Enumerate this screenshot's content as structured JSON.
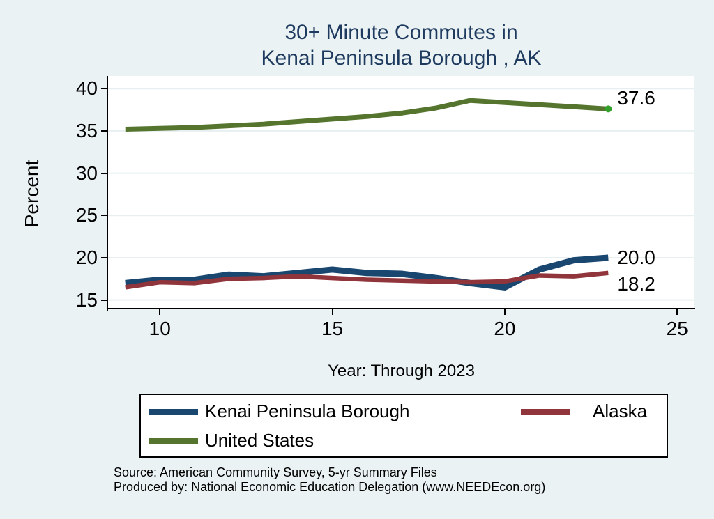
{
  "title": {
    "line1": "30+ Minute Commutes in",
    "line2": "Kenai Peninsula Borough , AK"
  },
  "y_axis": {
    "title": "Percent"
  },
  "x_axis": {
    "title": "Year: Through 2023"
  },
  "legend": {
    "items": [
      {
        "label": "Kenai Peninsula Borough",
        "color": "#1a476f"
      },
      {
        "label": "Alaska",
        "color": "#90353b"
      },
      {
        "label": "United States",
        "color": "#55752f"
      }
    ]
  },
  "footer": {
    "line1": "Source: American Community Survey, 5-yr Summary Files",
    "line2": "Produced by: National Economic Education Delegation (www.NEEDEcon.org)"
  },
  "colors": {
    "background": "#eaf2f3",
    "plot_background": "#ffffff",
    "gridline": "#e7eff1",
    "axis": "#000000",
    "title_text": "#1e3a5f",
    "end_marker": "#33a02c"
  },
  "chart_data": {
    "type": "line",
    "title": "30+ Minute Commutes in Kenai Peninsula Borough , AK",
    "xlabel": "Year: Through 2023",
    "ylabel": "Percent",
    "grid": "horizontal",
    "legend_position": "bottom",
    "x": [
      9,
      10,
      11,
      12,
      13,
      14,
      15,
      16,
      17,
      18,
      19,
      20,
      21,
      22,
      23
    ],
    "x_ticks": [
      10,
      15,
      20,
      25
    ],
    "y_ticks": [
      15,
      20,
      25,
      30,
      35,
      40
    ],
    "xlim": [
      8.5,
      25.5
    ],
    "ylim": [
      13.9,
      41.5
    ],
    "series": [
      {
        "name": "Kenai Peninsula Borough",
        "color": "#1a476f",
        "width": 9,
        "end_label": "20.0",
        "values": [
          17.0,
          17.4,
          17.4,
          18.0,
          17.8,
          18.2,
          18.6,
          18.2,
          18.1,
          17.6,
          17.0,
          16.5,
          18.6,
          19.7,
          20.0
        ]
      },
      {
        "name": "Alaska",
        "color": "#90353b",
        "width": 6.5,
        "end_label": "18.2",
        "values": [
          16.5,
          17.1,
          17.0,
          17.5,
          17.6,
          17.8,
          17.6,
          17.4,
          17.3,
          17.2,
          17.1,
          17.2,
          17.9,
          17.8,
          18.2
        ]
      },
      {
        "name": "United States",
        "color": "#55752f",
        "width": 7,
        "end_label": "37.6",
        "end_marker": true,
        "values": [
          35.2,
          35.3,
          35.4,
          35.6,
          35.8,
          36.1,
          36.4,
          36.7,
          37.1,
          37.7,
          38.6,
          38.35,
          38.1,
          37.85,
          37.6
        ]
      }
    ]
  }
}
